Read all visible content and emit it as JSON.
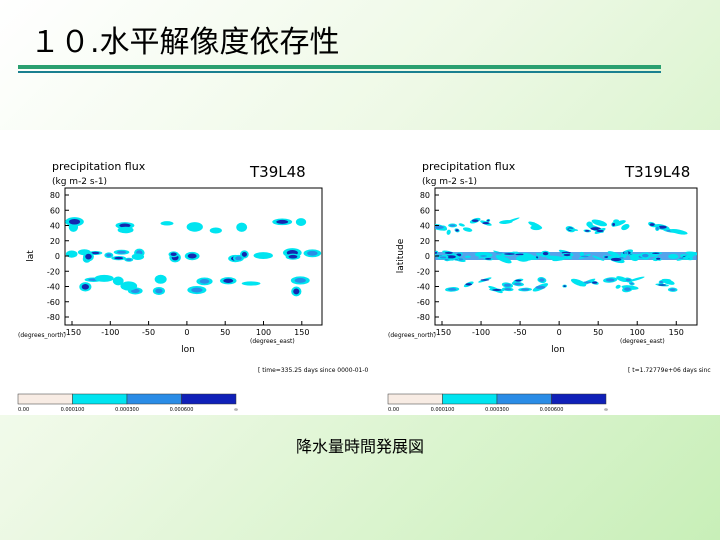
{
  "header": {
    "title": "１０.水平解像度依存性"
  },
  "panels": [
    {
      "title": "precipitation flux",
      "units": "(kg m-2 s-1)",
      "label": "T39L48",
      "ylabel": "lat",
      "xlabel": "lon",
      "yunit": "(degrees_north)",
      "xunit": "(degrees_east)",
      "yticks": [
        "80",
        "60",
        "40",
        "20",
        "0",
        "-20",
        "-40",
        "-60",
        "-80"
      ],
      "xticks": [
        "-150",
        "-100",
        "-50",
        "0",
        "50",
        "100",
        "150"
      ],
      "time": "[ time=335.25 days since 0000-01-0",
      "colorbar": [
        "0.00",
        "0.000100",
        "0.000300",
        "0.000600",
        "∞"
      ]
    },
    {
      "title": "precipitation flux",
      "units": "(kg m-2 s-1)",
      "label": "T319L48",
      "ylabel": "latitude",
      "xlabel": "lon",
      "yunit": "(degrees_north)",
      "xunit": "(degrees_east)",
      "yticks": [
        "80",
        "60",
        "40",
        "20",
        "0",
        "-20",
        "-40",
        "-60",
        "-80"
      ],
      "xticks": [
        "-150",
        "-100",
        "-50",
        "0",
        "50",
        "100",
        "150"
      ],
      "time": "[ t=1.72779e+06 days sinc",
      "colorbar": [
        "0.00",
        "0.000100",
        "0.000300",
        "0.000600",
        "∞"
      ]
    }
  ],
  "caption": "降水量時間発展図"
}
